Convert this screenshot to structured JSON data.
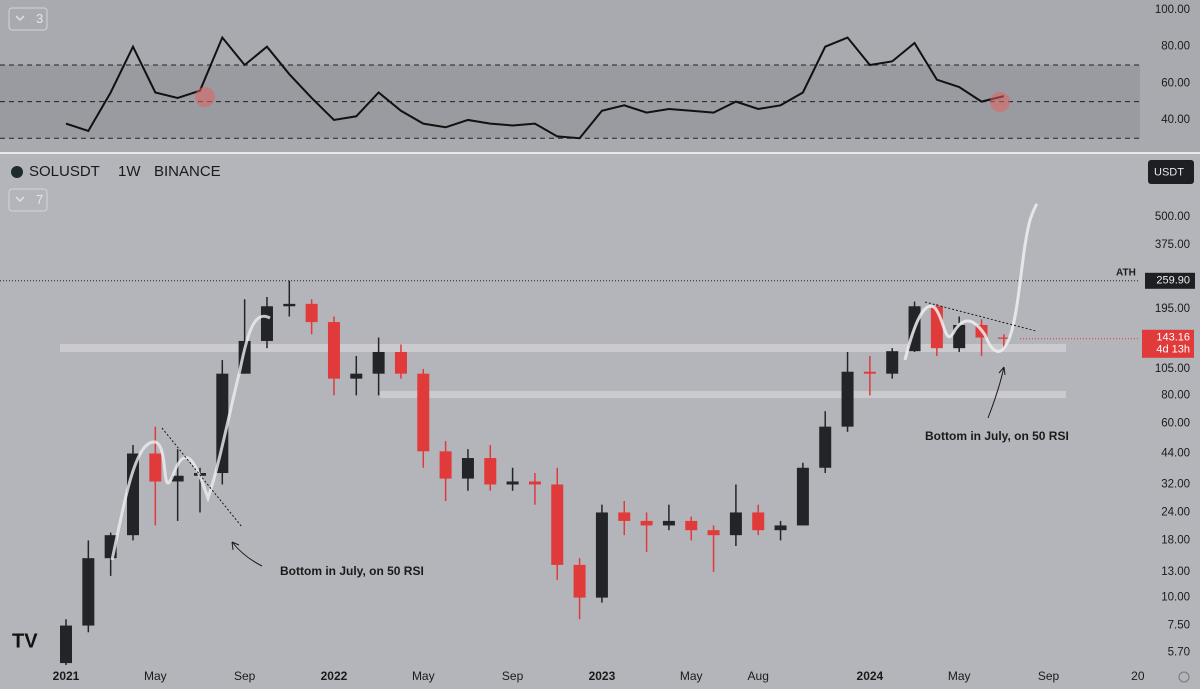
{
  "chart_data": [
    {
      "type": "line",
      "badge": "3",
      "color": "#111111",
      "values": [
        38,
        34,
        55,
        80,
        55,
        52,
        56,
        85,
        70,
        80,
        65,
        52,
        40,
        42,
        55,
        45,
        38,
        36,
        40,
        38,
        37,
        38,
        31,
        30,
        45,
        48,
        44,
        46,
        45,
        44,
        50,
        46,
        48,
        55,
        80,
        85,
        70,
        72,
        82,
        62,
        58,
        50,
        53,
        null,
        null,
        null,
        null,
        null,
        null
      ],
      "ylim": [
        22.5,
        105.5
      ],
      "yticks": [
        {
          "value": 100,
          "label": "100.00"
        },
        {
          "value": 80,
          "label": "80.00"
        },
        {
          "value": 60,
          "label": "60.00"
        },
        {
          "value": 40,
          "label": "40.00"
        }
      ],
      "levels": [
        70,
        50,
        30
      ]
    },
    {
      "type": "candlestick",
      "symbol": "SOLUSDT",
      "interval": "1W",
      "exchange": "BINANCE",
      "badge": "7",
      "currency": "USDT",
      "up_color": "#222428",
      "down_color": "#e03a3a",
      "log_scale": true,
      "categories": [
        "2021",
        null,
        null,
        null,
        "May",
        null,
        null,
        null,
        "Sep",
        null,
        null,
        null,
        "2022",
        null,
        null,
        null,
        "May",
        null,
        null,
        null,
        "Sep",
        null,
        null,
        null,
        "2023",
        null,
        null,
        null,
        "May",
        null,
        null,
        "Aug",
        null,
        null,
        null,
        null,
        "2024",
        null,
        null,
        null,
        "May",
        null,
        null,
        null,
        "Sep",
        null,
        null,
        null,
        "20"
      ],
      "open": [
        5.1,
        7.5,
        15,
        19,
        44,
        33,
        35,
        36,
        100,
        140,
        200,
        205,
        170,
        95,
        100,
        125,
        100,
        45,
        34,
        42,
        32,
        33,
        32,
        14,
        10,
        24,
        22,
        21,
        22,
        20,
        19,
        24,
        20,
        21,
        38,
        58,
        102,
        100,
        126,
        200,
        130,
        165,
        145,
        null,
        null,
        null,
        null,
        null,
        null
      ],
      "high": [
        8,
        18,
        19.5,
        48,
        58,
        46,
        38,
        115,
        215,
        220,
        260,
        215,
        180,
        120,
        145,
        135,
        105,
        50,
        46,
        48,
        38,
        36,
        38,
        15,
        26,
        27,
        24,
        26,
        23,
        21,
        32,
        26,
        22,
        40,
        68,
        125,
        120,
        130,
        210,
        205,
        180,
        175,
        150,
        null,
        null,
        null,
        null,
        null,
        null
      ],
      "low": [
        5,
        7,
        12.5,
        18,
        21,
        22,
        24,
        32,
        100,
        130,
        180,
        150,
        80,
        80,
        80,
        95,
        38,
        27,
        30,
        30,
        30,
        26,
        12,
        8,
        9.5,
        19,
        16,
        20,
        18,
        13,
        17,
        19,
        18,
        21,
        36,
        55,
        80,
        95,
        125,
        120,
        125,
        120,
        130,
        null,
        null,
        null,
        null,
        null,
        null
      ],
      "close": [
        7.5,
        15,
        19,
        44,
        33,
        35,
        36,
        100,
        140,
        200,
        205,
        170,
        95,
        100,
        125,
        100,
        45,
        34,
        42,
        32,
        33,
        32,
        14,
        10,
        24,
        22,
        21,
        22,
        20,
        19,
        24,
        20,
        21,
        38,
        58,
        102,
        100,
        126,
        200,
        130,
        165,
        145,
        143.16,
        null,
        null,
        null,
        null,
        null,
        null
      ],
      "ylim": [
        5,
        900
      ],
      "yticks": [
        {
          "value": 500,
          "label": "500.00"
        },
        {
          "value": 375,
          "label": "375.00"
        },
        {
          "value": 195,
          "label": "195.00"
        },
        {
          "value": 105,
          "label": "105.00"
        },
        {
          "value": 80,
          "label": "80.00"
        },
        {
          "value": 60,
          "label": "60.00"
        },
        {
          "value": 44,
          "label": "44.00"
        },
        {
          "value": 32,
          "label": "32.00"
        },
        {
          "value": 24,
          "label": "24.00"
        },
        {
          "value": 18,
          "label": "18.00"
        },
        {
          "value": 13,
          "label": "13.00"
        },
        {
          "value": 10,
          "label": "10.00"
        },
        {
          "value": 7.5,
          "label": "7.50"
        },
        {
          "value": 5.7,
          "label": "5.70"
        }
      ],
      "ath": {
        "label": "ATH",
        "value": 259.9,
        "value_label": "259.90"
      },
      "last_price": {
        "value": 143.16,
        "countdown": "4d 13h"
      },
      "annotations": [
        "Bottom in July, on 50 RSI",
        "Bottom in July, on 50 RSI"
      ]
    }
  ]
}
